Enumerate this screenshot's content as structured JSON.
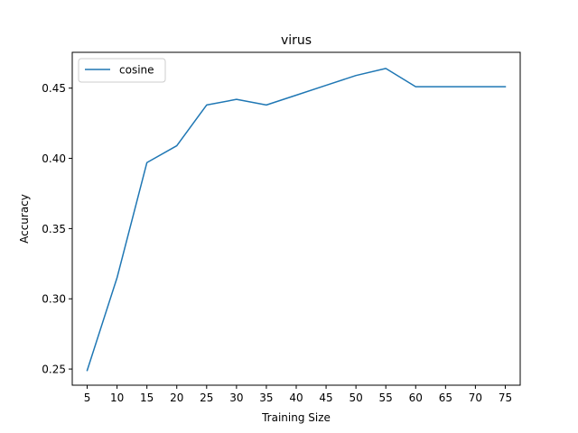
{
  "chart_data": {
    "type": "line",
    "title": "virus",
    "xlabel": "Training Size",
    "ylabel": "Accuracy",
    "xlim": [
      2.5,
      77.5
    ],
    "ylim": [
      0.2385,
      0.4755
    ],
    "x_ticks": [
      5,
      10,
      15,
      20,
      25,
      30,
      35,
      40,
      45,
      50,
      55,
      60,
      65,
      70,
      75
    ],
    "y_ticks": [
      0.25,
      0.3,
      0.35,
      0.4,
      0.45
    ],
    "y_tick_labels": [
      "0.25",
      "0.30",
      "0.35",
      "0.40",
      "0.45"
    ],
    "grid": false,
    "legend_position": "upper-left",
    "series": [
      {
        "name": "cosine",
        "color": "#1f77b4",
        "x": [
          5,
          10,
          15,
          20,
          25,
          30,
          35,
          40,
          45,
          50,
          55,
          60,
          65,
          70,
          75
        ],
        "y": [
          0.249,
          0.315,
          0.397,
          0.409,
          0.438,
          0.442,
          0.438,
          0.445,
          0.452,
          0.459,
          0.464,
          0.451,
          0.451,
          0.451,
          0.451
        ]
      }
    ]
  }
}
